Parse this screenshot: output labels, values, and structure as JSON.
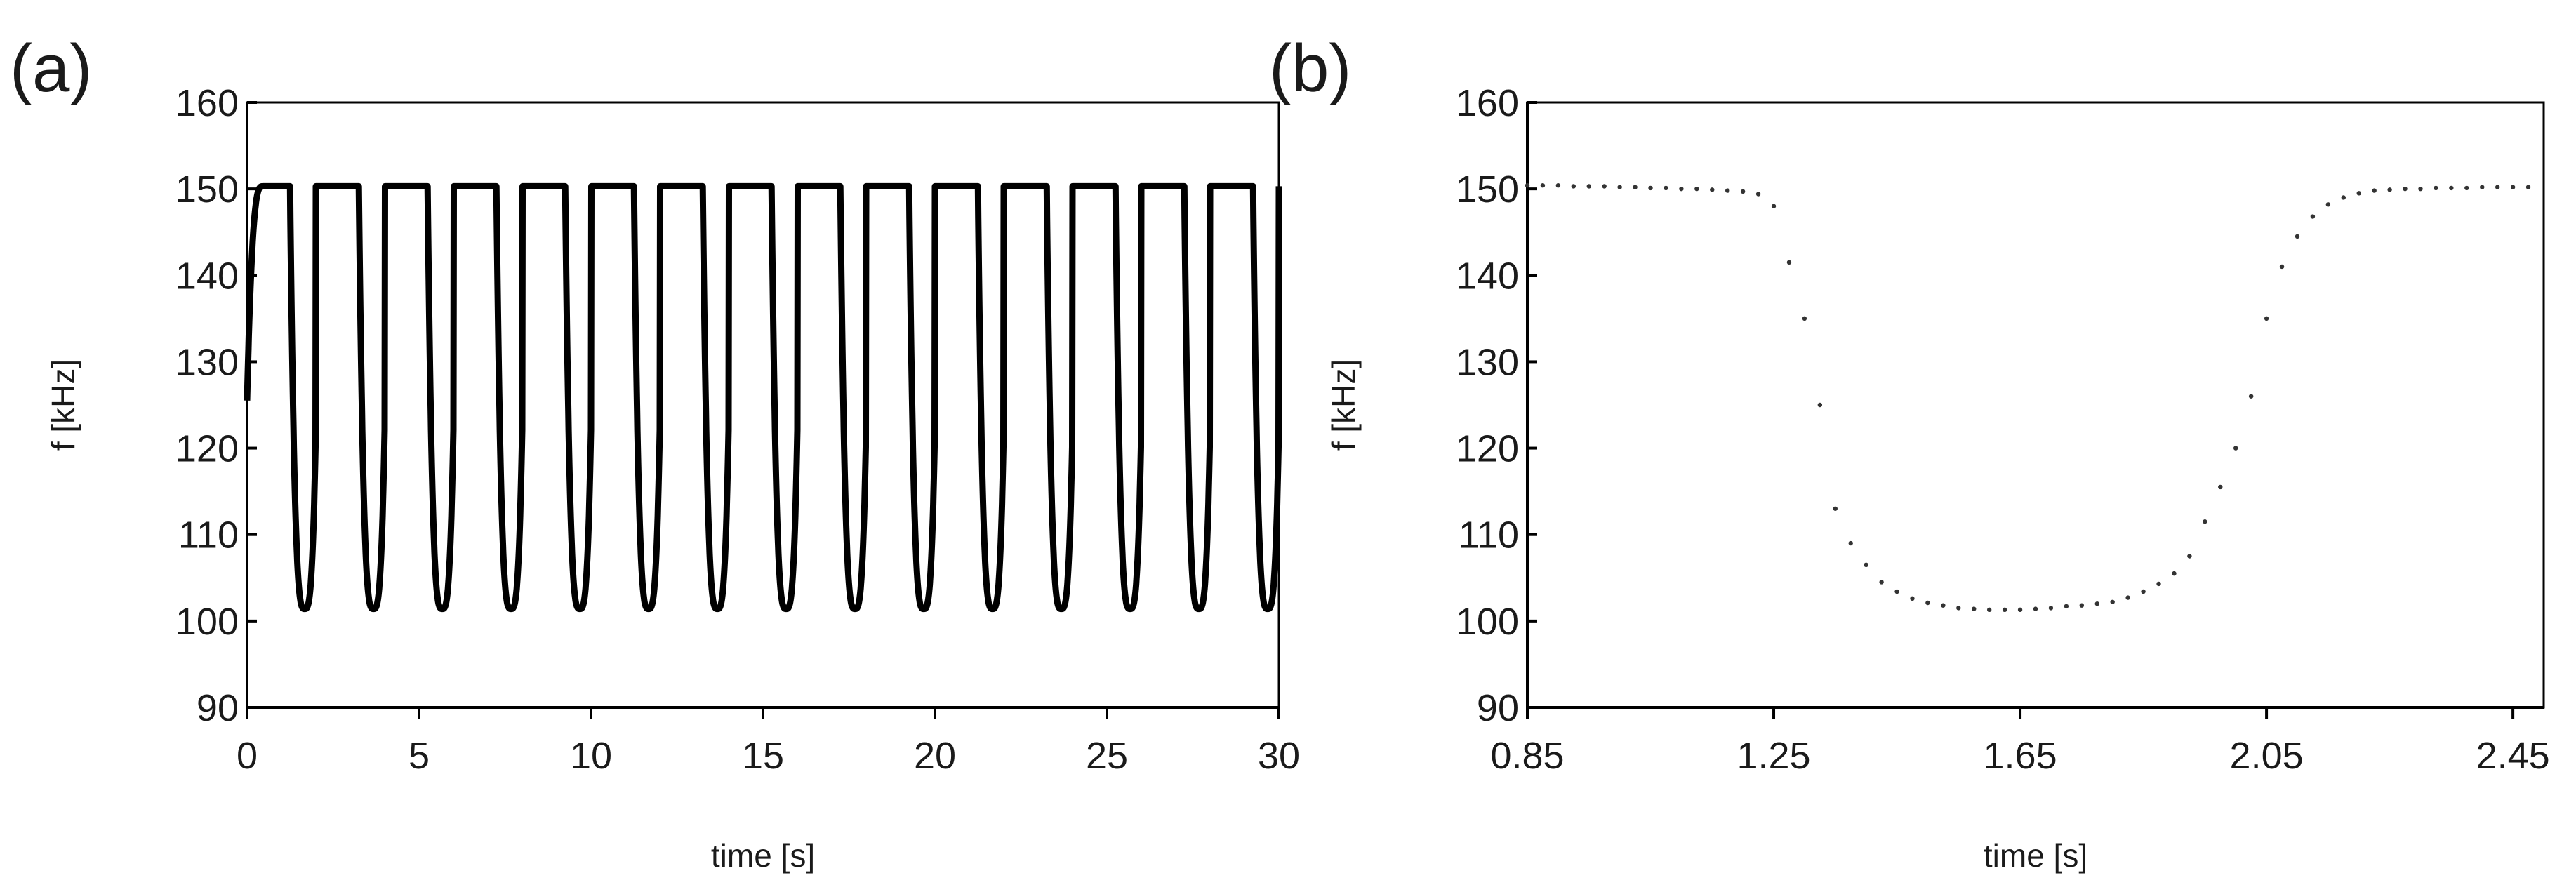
{
  "chart_data": [
    {
      "panel_label": "(a)",
      "type": "line",
      "title": "",
      "xlabel": "time [s]",
      "ylabel": "f [kHz]",
      "xlim": [
        0,
        30
      ],
      "ylim": [
        90,
        160
      ],
      "xticks": [
        0,
        5,
        10,
        15,
        20,
        25,
        30
      ],
      "yticks": [
        90,
        100,
        110,
        120,
        130,
        140,
        150,
        160
      ],
      "grid": false,
      "legend": "none",
      "line_color": "#000000",
      "periodic_waveform": {
        "period_s": 2.0,
        "high_kHz": 150.3,
        "low_kHz": 101.4,
        "initial_value_kHz": 125.5,
        "drop_start_in_period_s": 1.25,
        "rise_end_in_period_s": 2.1
      },
      "series": [
        {
          "x": [
            0,
            0.3,
            0.5,
            1.0,
            1.25,
            1.3,
            1.35,
            1.45,
            1.55,
            1.65,
            1.85,
            1.95,
            2.0,
            2.05,
            2.1,
            2.2,
            3.0,
            3.25,
            3.3,
            3.35,
            3.45,
            3.55,
            3.65,
            3.85,
            3.95,
            4.0,
            4.05,
            4.1,
            4.2,
            5.0
          ],
          "y": [
            125.5,
            148.5,
            150.3,
            150.3,
            149.0,
            141.0,
            125.0,
            108.0,
            102.5,
            101.4,
            102.5,
            110.0,
            126.0,
            141.0,
            148.5,
            150.3,
            150.3,
            149.0,
            141.0,
            125.0,
            108.0,
            102.5,
            101.4,
            102.5,
            110.0,
            126.0,
            141.0,
            148.5,
            150.3,
            150.3
          ]
        }
      ]
    },
    {
      "panel_label": "(b)",
      "type": "scatter",
      "title": "",
      "xlabel": "time [s]",
      "ylabel": "f [kHz]",
      "xlim": [
        0.85,
        2.5
      ],
      "ylim": [
        90,
        160
      ],
      "xticks": [
        0.85,
        1.25,
        1.65,
        2.05,
        2.45
      ],
      "yticks": [
        90,
        100,
        110,
        120,
        130,
        140,
        150,
        160
      ],
      "grid": false,
      "legend": "none",
      "marker_color": "#333333",
      "series": [
        {
          "x": [
            0.85,
            0.875,
            0.9,
            0.925,
            0.95,
            0.975,
            1.0,
            1.025,
            1.05,
            1.075,
            1.1,
            1.125,
            1.15,
            1.175,
            1.2,
            1.225,
            1.25,
            1.275,
            1.3,
            1.325,
            1.35,
            1.375,
            1.4,
            1.425,
            1.45,
            1.475,
            1.5,
            1.525,
            1.55,
            1.575,
            1.6,
            1.625,
            1.65,
            1.675,
            1.7,
            1.725,
            1.75,
            1.775,
            1.8,
            1.825,
            1.85,
            1.875,
            1.9,
            1.925,
            1.95,
            1.975,
            2.0,
            2.025,
            2.05,
            2.075,
            2.1,
            2.125,
            2.15,
            2.175,
            2.2,
            2.225,
            2.25,
            2.275,
            2.3,
            2.325,
            2.35,
            2.375,
            2.4,
            2.425,
            2.45,
            2.475
          ],
          "y": [
            150.4,
            150.4,
            150.4,
            150.3,
            150.3,
            150.3,
            150.2,
            150.2,
            150.1,
            150.1,
            150.0,
            150.0,
            149.9,
            149.8,
            149.7,
            149.4,
            148.0,
            141.5,
            135.0,
            125.0,
            113.0,
            109.0,
            106.5,
            104.5,
            103.4,
            102.6,
            102.1,
            101.8,
            101.5,
            101.4,
            101.3,
            101.3,
            101.3,
            101.4,
            101.5,
            101.7,
            101.8,
            102.0,
            102.2,
            102.7,
            103.4,
            104.3,
            105.5,
            107.5,
            111.5,
            115.5,
            120.0,
            126.0,
            135.0,
            141.0,
            144.5,
            146.8,
            148.2,
            149.0,
            149.5,
            149.8,
            149.9,
            150.0,
            150.0,
            150.1,
            150.1,
            150.1,
            150.2,
            150.2,
            150.2,
            150.2
          ]
        }
      ]
    }
  ]
}
